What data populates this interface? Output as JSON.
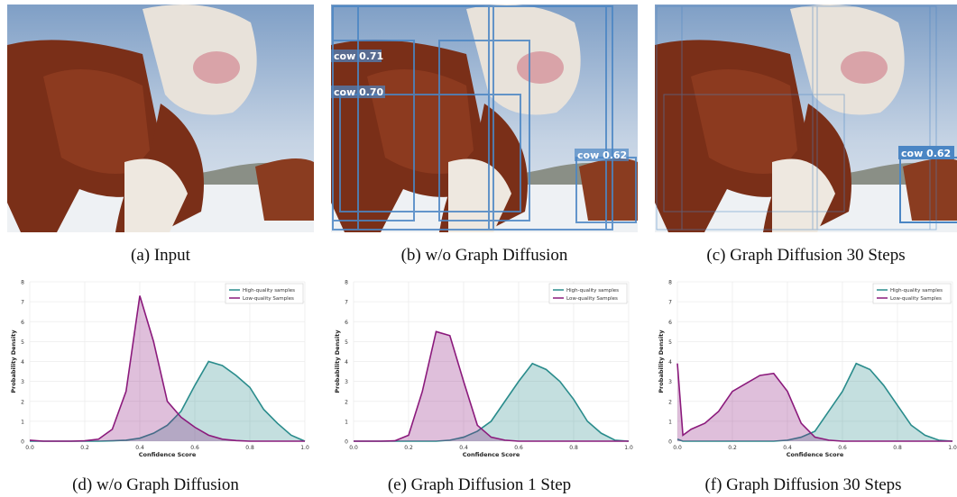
{
  "panels": [
    {
      "caption": "(a) Input"
    },
    {
      "caption": "(b) w/o Graph Diffusion",
      "detections": [
        "cow 0.70",
        "cow 0.71",
        "cow 0.62"
      ]
    },
    {
      "caption": "(c) Graph Diffusion 30 Steps",
      "detections": [
        "cow 0.62"
      ]
    }
  ],
  "chart_data": [
    {
      "type": "line",
      "caption": "(d) w/o Graph Diffusion",
      "xlabel": "Confidence Score",
      "ylabel": "Probability Density",
      "x": [
        0,
        0.05,
        0.1,
        0.15,
        0.2,
        0.25,
        0.3,
        0.35,
        0.4,
        0.45,
        0.5,
        0.55,
        0.6,
        0.65,
        0.7,
        0.75,
        0.8,
        0.85,
        0.9,
        0.95,
        1.0
      ],
      "series": [
        {
          "name": "High-quality samples",
          "color": "#2a8c8c",
          "values": [
            0,
            0,
            0,
            0,
            0,
            0,
            0.02,
            0.05,
            0.15,
            0.4,
            0.8,
            1.5,
            2.8,
            4.0,
            3.8,
            3.3,
            2.7,
            1.6,
            0.9,
            0.3,
            0
          ]
        },
        {
          "name": "Low-quality Samples",
          "color": "#8b1a7c",
          "values": [
            0.05,
            0,
            0,
            0,
            0.02,
            0.1,
            0.6,
            2.5,
            7.3,
            5.0,
            2.0,
            1.2,
            0.7,
            0.3,
            0.1,
            0.03,
            0,
            0,
            0,
            0,
            0
          ]
        }
      ],
      "xlim": [
        0,
        1
      ],
      "ylim": [
        0,
        8
      ],
      "xticks": [
        {
          "value": 0,
          "label": "0.0"
        },
        0.2,
        0.4,
        0.6,
        0.8,
        {
          "value": 1,
          "label": "1.0"
        }
      ],
      "yticks": [
        0,
        1,
        2,
        3,
        4,
        5,
        6,
        7,
        8
      ],
      "grid": true,
      "legend": "upper-right",
      "fill": true
    },
    {
      "type": "line",
      "caption": "(e) Graph Diffusion 1 Step",
      "xlabel": "Confidence Score",
      "ylabel": "Probability Density",
      "x": [
        0,
        0.05,
        0.1,
        0.15,
        0.2,
        0.25,
        0.3,
        0.35,
        0.4,
        0.45,
        0.5,
        0.55,
        0.6,
        0.65,
        0.7,
        0.75,
        0.8,
        0.85,
        0.9,
        0.95,
        1.0
      ],
      "series": [
        {
          "name": "High-quality samples",
          "color": "#2a8c8c",
          "values": [
            0,
            0,
            0,
            0,
            0,
            0,
            0,
            0.05,
            0.2,
            0.5,
            1.0,
            2.0,
            3.0,
            3.9,
            3.6,
            3.0,
            2.1,
            1.0,
            0.4,
            0.05,
            0
          ]
        },
        {
          "name": "Low-quality Samples",
          "color": "#8b1a7c",
          "values": [
            0,
            0,
            0,
            0.02,
            0.3,
            2.5,
            5.5,
            5.3,
            3.0,
            0.8,
            0.2,
            0.05,
            0,
            0,
            0,
            0,
            0,
            0,
            0,
            0,
            0
          ]
        }
      ],
      "xlim": [
        0,
        1
      ],
      "ylim": [
        0,
        8
      ],
      "xticks": [
        {
          "value": 0,
          "label": "0.0"
        },
        0.2,
        0.4,
        0.6,
        0.8,
        {
          "value": 1,
          "label": "1.0"
        }
      ],
      "yticks": [
        0,
        1,
        2,
        3,
        4,
        5,
        6,
        7,
        8
      ],
      "grid": true,
      "legend": "upper-right",
      "fill": true
    },
    {
      "type": "line",
      "caption": "(f) Graph Diffusion 30 Steps",
      "xlabel": "Confidence Score",
      "ylabel": "Probability Density",
      "x": [
        0,
        0.02,
        0.05,
        0.1,
        0.15,
        0.2,
        0.25,
        0.3,
        0.35,
        0.4,
        0.45,
        0.5,
        0.55,
        0.6,
        0.65,
        0.7,
        0.75,
        0.8,
        0.85,
        0.9,
        0.95,
        1.0
      ],
      "series": [
        {
          "name": "High-quality samples",
          "color": "#2a8c8c",
          "values": [
            0.1,
            0,
            0,
            0,
            0,
            0,
            0,
            0,
            0,
            0.05,
            0.2,
            0.5,
            1.5,
            2.5,
            3.9,
            3.6,
            2.8,
            1.8,
            0.8,
            0.3,
            0.05,
            0
          ]
        },
        {
          "name": "Low-quality Samples",
          "color": "#8b1a7c",
          "values": [
            3.9,
            0.3,
            0.6,
            0.9,
            1.5,
            2.5,
            2.9,
            3.3,
            3.4,
            2.5,
            0.9,
            0.2,
            0.05,
            0,
            0,
            0,
            0,
            0,
            0,
            0,
            0,
            0
          ]
        }
      ],
      "xlim": [
        0,
        1
      ],
      "ylim": [
        0,
        8
      ],
      "xticks": [
        {
          "value": 0,
          "label": "0.0"
        },
        0.2,
        0.4,
        0.6,
        0.8,
        {
          "value": 1,
          "label": "1.0"
        }
      ],
      "yticks": [
        0,
        1,
        2,
        3,
        4,
        5,
        6,
        7,
        8
      ],
      "grid": true,
      "legend": "upper-right",
      "fill": true
    }
  ]
}
